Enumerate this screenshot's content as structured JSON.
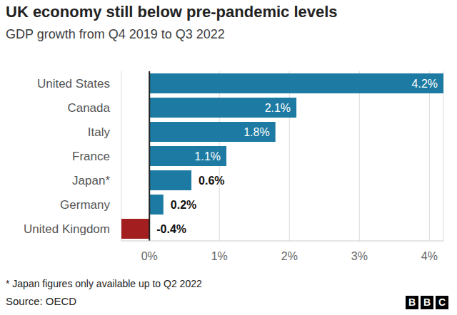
{
  "chart_data": {
    "type": "bar",
    "orientation": "horizontal",
    "title": "UK economy still below pre-pandemic levels",
    "subtitle": "GDP growth from Q4 2019 to Q3 2022",
    "categories": [
      "United States",
      "Canada",
      "Italy",
      "France",
      "Japan*",
      "Germany",
      "United Kingdom"
    ],
    "values": [
      4.2,
      2.1,
      1.8,
      1.1,
      0.6,
      0.2,
      -0.4
    ],
    "value_labels": [
      "4.2%",
      "2.1%",
      "1.8%",
      "1.1%",
      "0.6%",
      "0.2%",
      "-0.4%"
    ],
    "colors": [
      "#1d7ba3",
      "#1d7ba3",
      "#1d7ba3",
      "#1d7ba3",
      "#1d7ba3",
      "#1d7ba3",
      "#a31f1f"
    ],
    "xlim": [
      -0.4,
      4.2
    ],
    "xticks": [
      {
        "value": 0,
        "label": "0%"
      },
      {
        "value": 1,
        "label": "1%"
      },
      {
        "value": 2,
        "label": "2%"
      },
      {
        "value": 3,
        "label": "3%"
      },
      {
        "value": 4,
        "label": "4%"
      }
    ],
    "grid": true,
    "data_labels": true,
    "footnote": "* Japan figures only available up to Q2 2022",
    "source": "Source: OECD"
  },
  "logo": "BBC"
}
